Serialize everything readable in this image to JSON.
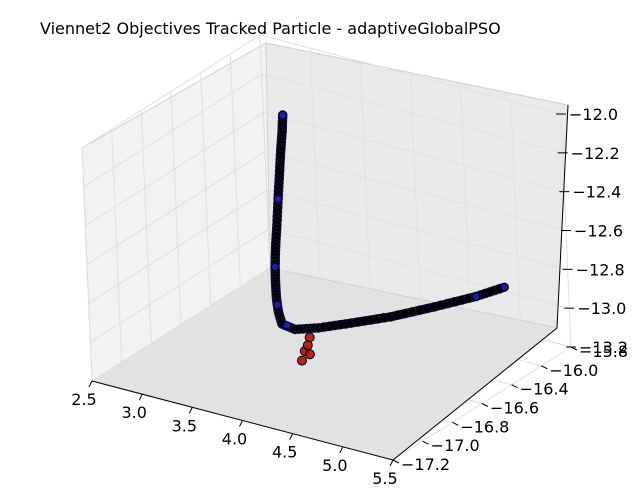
{
  "chart_data": {
    "type": "scatter",
    "projection": "3d",
    "title": "Viennet2 Objectives Tracked Particle - adaptiveGlobalPSO",
    "xlabel": "",
    "ylabel": "",
    "zlabel": "",
    "grid": true,
    "xlim": [
      2.5,
      5.5
    ],
    "ylim": [
      -17.2,
      -15.8
    ],
    "zlim": [
      -13.2,
      -12.0
    ],
    "x_ticks": [
      "2.5",
      "3.0",
      "3.5",
      "4.0",
      "4.5",
      "5.0",
      "5.5"
    ],
    "y_ticks": [
      "−17.2",
      "−17.0",
      "−16.8",
      "−16.6",
      "−16.4",
      "−16.0",
      "−15.8"
    ],
    "z_ticks": [
      "−13.2",
      "−13.0",
      "−12.8",
      "−12.6",
      "−12.4",
      "−12.2",
      "−12.0"
    ],
    "colors": {
      "trajectory": "#000000",
      "early_points": "#1f1fd0",
      "final_points": "#b01010",
      "pane": "#f2f2f2",
      "grid": "#e0e0e0"
    },
    "series": [
      {
        "role": "trajectory",
        "points": [
          [
            3.55,
            -16.45,
            -12.0
          ],
          [
            3.55,
            -16.46,
            -12.08
          ],
          [
            3.54,
            -16.47,
            -12.18
          ],
          [
            3.53,
            -16.48,
            -12.3
          ],
          [
            3.52,
            -16.49,
            -12.42
          ],
          [
            3.51,
            -16.5,
            -12.55
          ],
          [
            3.5,
            -16.51,
            -12.66
          ],
          [
            3.5,
            -16.52,
            -12.76
          ],
          [
            3.51,
            -16.53,
            -12.84
          ],
          [
            3.54,
            -16.55,
            -12.91
          ],
          [
            3.58,
            -16.57,
            -12.96
          ],
          [
            3.65,
            -16.6,
            -13.0
          ],
          [
            3.78,
            -16.6,
            -13.01
          ],
          [
            3.95,
            -16.55,
            -13.0
          ],
          [
            4.15,
            -16.45,
            -12.99
          ],
          [
            4.38,
            -16.32,
            -12.98
          ],
          [
            4.6,
            -16.15,
            -12.97
          ],
          [
            4.8,
            -15.98,
            -12.96
          ],
          [
            4.92,
            -15.85,
            -12.95
          ]
        ]
      },
      {
        "role": "early_points",
        "points": [
          [
            3.55,
            -16.45,
            -12.0
          ],
          [
            3.52,
            -16.49,
            -12.42
          ],
          [
            3.5,
            -16.52,
            -12.76
          ],
          [
            3.56,
            -16.56,
            -12.93
          ],
          [
            3.7,
            -16.6,
            -13.0
          ],
          [
            4.8,
            -15.98,
            -12.96
          ],
          [
            4.92,
            -15.85,
            -12.95
          ]
        ]
      },
      {
        "role": "final_points",
        "points": [
          [
            3.95,
            -16.62,
            -13.02
          ],
          [
            4.0,
            -16.7,
            -13.05
          ],
          [
            4.02,
            -16.74,
            -13.08
          ],
          [
            4.05,
            -16.7,
            -13.06
          ],
          [
            3.98,
            -16.66,
            -13.04
          ]
        ]
      }
    ]
  }
}
